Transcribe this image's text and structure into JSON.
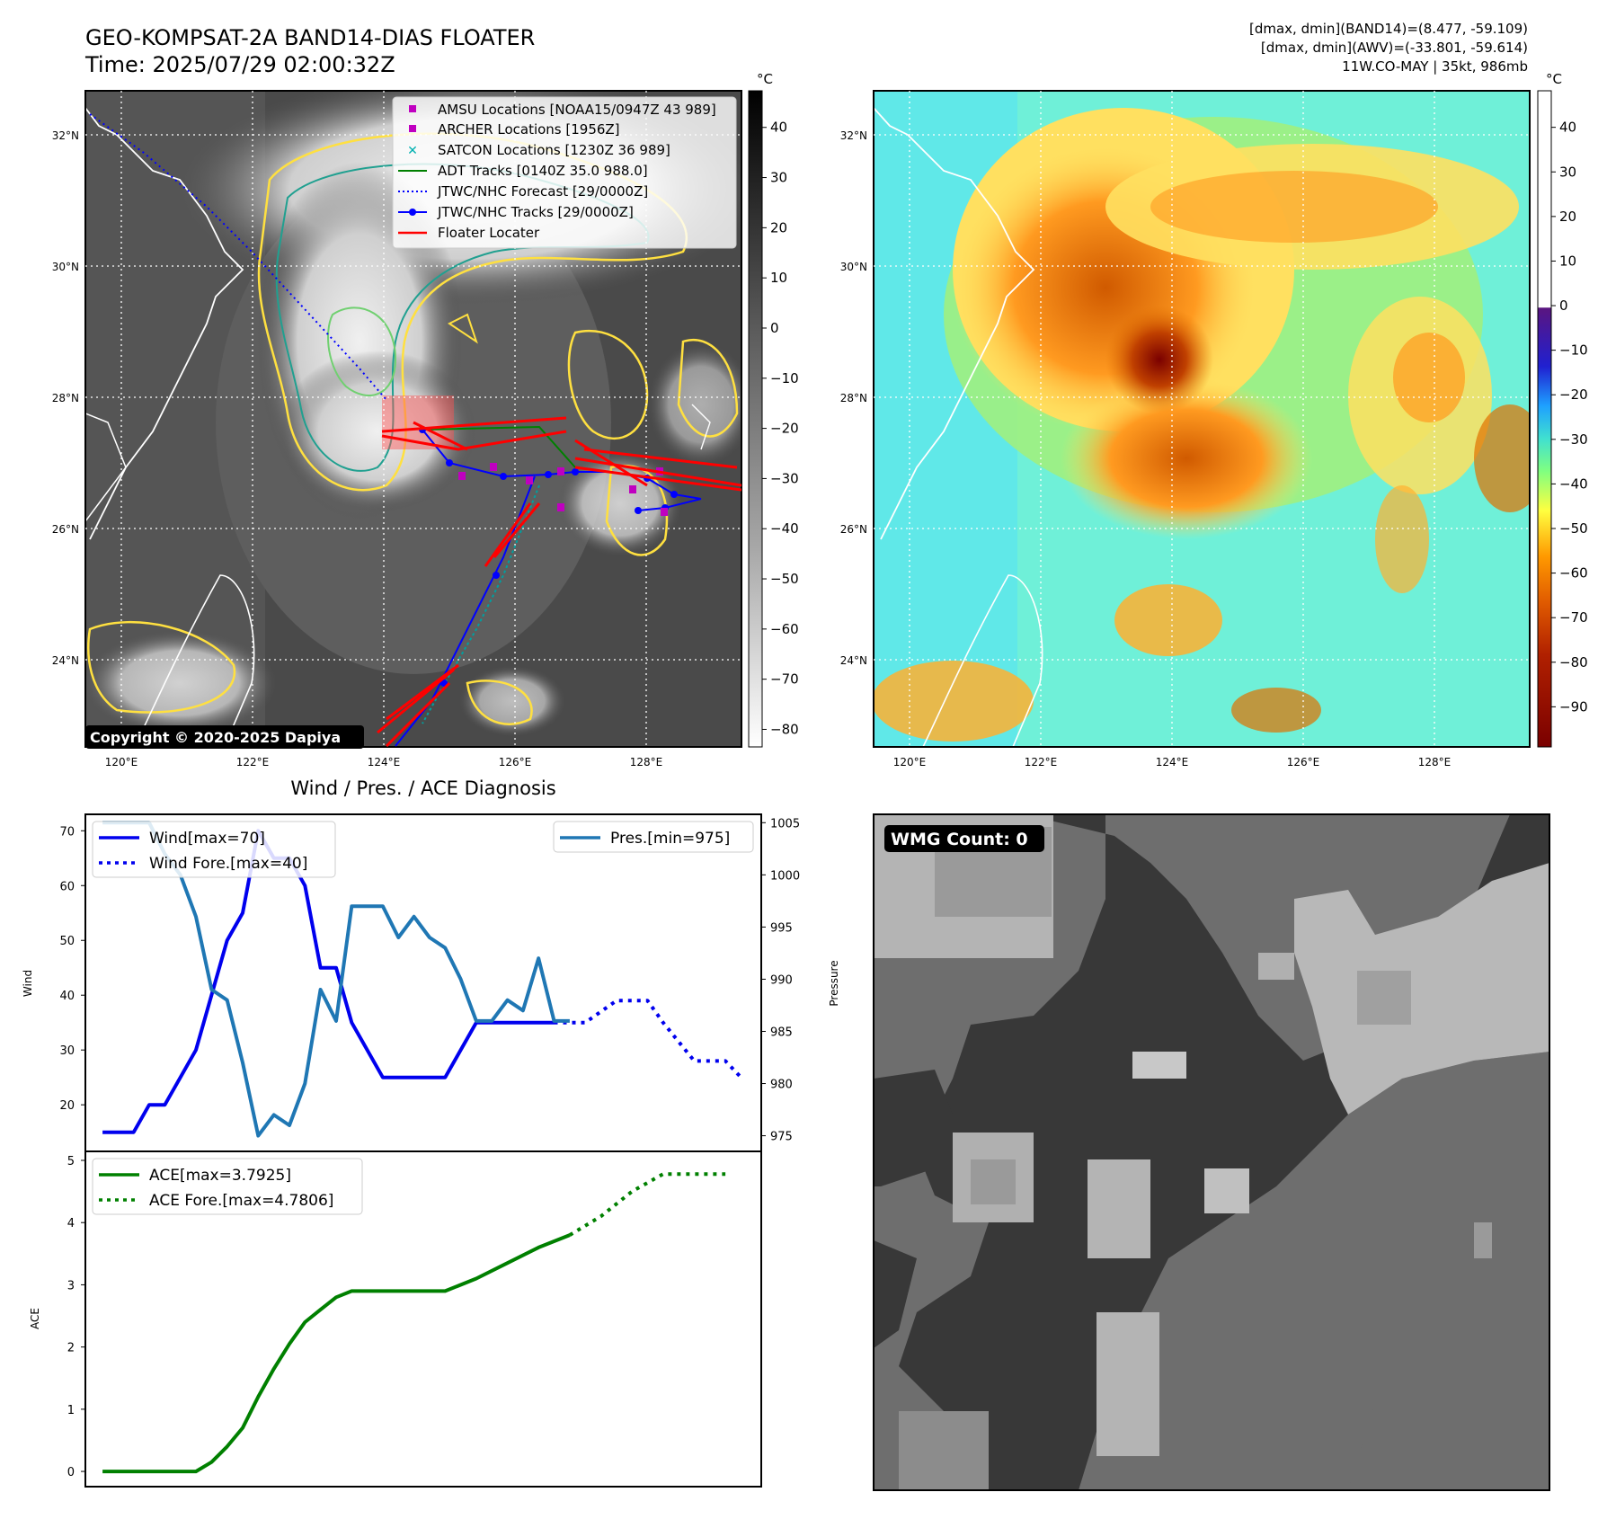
{
  "header": {
    "title": "GEO-KOMPSAT-2A BAND14-DIAS FLOATER",
    "time": "Time: 2025/07/29 02:00:32Z",
    "info_line1": "[dmax, dmin](BAND14)=(8.477, -59.109)",
    "info_line2": "[dmax, dmin](AWV)=(-33.801, -59.614)",
    "info_line3": "11W.CO-MAY | 35kt, 986mb"
  },
  "ir_panel": {
    "copyright": "Copyright © 2020-2025 Dapiya",
    "colorbar_unit": "°C",
    "colorbar_ticks": [
      "40",
      "30",
      "20",
      "10",
      "0",
      "−10",
      "−20",
      "−30",
      "−40",
      "−50",
      "−60",
      "−70",
      "−80"
    ],
    "lat_labels": [
      "32°N",
      "30°N",
      "28°N",
      "26°N",
      "24°N"
    ],
    "lon_labels": [
      "120°E",
      "122°E",
      "124°E",
      "126°E",
      "128°E"
    ],
    "legend": [
      {
        "label": "AMSU Locations [NOAA15/0947Z 43 989]",
        "color": "#c000c0",
        "kind": "square"
      },
      {
        "label": "ARCHER Locations [1956Z]",
        "color": "#c000c0",
        "kind": "square"
      },
      {
        "label": "SATCON Locations [1230Z 36 989]",
        "color": "#00b0b0",
        "kind": "x"
      },
      {
        "label": "ADT Tracks [0140Z 35.0 988.0]",
        "color": "#008000",
        "kind": "line"
      },
      {
        "label": "JTWC/NHC Forecast [29/0000Z]",
        "color": "#0000ff",
        "kind": "dotted"
      },
      {
        "label": "JTWC/NHC Tracks [29/0000Z]",
        "color": "#0000ff",
        "kind": "marker-line"
      },
      {
        "label": "Floater Locater",
        "color": "#ff0000",
        "kind": "line"
      }
    ]
  },
  "awv_panel": {
    "colorbar_unit": "°C",
    "colorbar_ticks": [
      "40",
      "30",
      "20",
      "10",
      "0",
      "−10",
      "−20",
      "−30",
      "−40",
      "−50",
      "−60",
      "−70",
      "−80",
      "−90"
    ],
    "lat_labels": [
      "32°N",
      "30°N",
      "28°N",
      "26°N",
      "24°N"
    ],
    "lon_labels": [
      "120°E",
      "122°E",
      "124°E",
      "126°E",
      "128°E"
    ]
  },
  "wmg_panel": {
    "badge": "WMG Count: 0"
  },
  "diag_title": "Wind / Pres. / ACE Diagnosis",
  "chart_data": [
    {
      "type": "line",
      "ylabel_left": "Wind",
      "ylabel_right": "Pressure",
      "x": [
        0,
        1,
        2,
        3,
        4,
        5,
        6,
        7,
        8,
        9,
        10,
        11,
        12,
        13,
        14,
        15,
        16,
        17,
        18,
        19,
        20,
        21,
        22,
        23,
        24,
        25,
        26,
        27,
        28,
        29
      ],
      "wind_yticks": [
        "70",
        "60",
        "50",
        "40",
        "30",
        "20"
      ],
      "pres_yticks": [
        "1005",
        "1000",
        "995",
        "990",
        "985",
        "980",
        "975"
      ],
      "series": [
        {
          "name": "Wind[max=70]",
          "axis": "left",
          "style": "solid",
          "color": "#0000ee",
          "points": [
            [
              0,
              15
            ],
            [
              2,
              15
            ],
            [
              3,
              20
            ],
            [
              4,
              20
            ],
            [
              6,
              30
            ],
            [
              8,
              50
            ],
            [
              9,
              55
            ],
            [
              10,
              70
            ],
            [
              11,
              65
            ],
            [
              12,
              65
            ],
            [
              13,
              60
            ],
            [
              14,
              45
            ],
            [
              15,
              45
            ],
            [
              16,
              35
            ],
            [
              18,
              25
            ],
            [
              20,
              25
            ],
            [
              22,
              25
            ],
            [
              24,
              35
            ],
            [
              26,
              35
            ],
            [
              28,
              35
            ],
            [
              29,
              35
            ]
          ]
        },
        {
          "name": "Wind Fore.[max=40]",
          "axis": "left",
          "style": "dotted",
          "color": "#0000ee",
          "points": [
            [
              29,
              35
            ],
            [
              31,
              35
            ],
            [
              33,
              39
            ],
            [
              35,
              39
            ],
            [
              36,
              35
            ],
            [
              38,
              28
            ],
            [
              40,
              28
            ],
            [
              41,
              25
            ]
          ]
        },
        {
          "name": "Pres.[min=975]",
          "axis": "right",
          "style": "solid",
          "color": "#1f77b4",
          "points": [
            [
              0,
              1005
            ],
            [
              3,
              1005
            ],
            [
              4,
              1002
            ],
            [
              5,
              1000
            ],
            [
              6,
              996
            ],
            [
              7,
              989
            ],
            [
              8,
              988
            ],
            [
              9,
              982
            ],
            [
              10,
              975
            ],
            [
              11,
              977
            ],
            [
              12,
              976
            ],
            [
              13,
              980
            ],
            [
              14,
              989
            ],
            [
              15,
              986
            ],
            [
              16,
              997
            ],
            [
              17,
              997
            ],
            [
              18,
              997
            ],
            [
              19,
              994
            ],
            [
              20,
              996
            ],
            [
              21,
              994
            ],
            [
              22,
              993
            ],
            [
              23,
              990
            ],
            [
              24,
              986
            ],
            [
              25,
              986
            ],
            [
              26,
              988
            ],
            [
              27,
              987
            ],
            [
              28,
              992
            ],
            [
              29,
              986
            ],
            [
              30,
              986
            ]
          ]
        }
      ]
    },
    {
      "type": "line",
      "ylabel": "ACE",
      "yticks": [
        "5",
        "4",
        "3",
        "2",
        "1",
        "0"
      ],
      "series": [
        {
          "name": "ACE[max=3.7925]",
          "style": "solid",
          "color": "#008000",
          "points": [
            [
              0,
              0
            ],
            [
              6,
              0
            ],
            [
              7,
              0.15
            ],
            [
              8,
              0.4
            ],
            [
              9,
              0.7
            ],
            [
              10,
              1.2
            ],
            [
              11,
              1.65
            ],
            [
              12,
              2.05
            ],
            [
              13,
              2.4
            ],
            [
              14,
              2.6
            ],
            [
              15,
              2.8
            ],
            [
              16,
              2.9
            ],
            [
              18,
              2.9
            ],
            [
              20,
              2.9
            ],
            [
              22,
              2.9
            ],
            [
              24,
              3.1
            ],
            [
              26,
              3.35
            ],
            [
              28,
              3.6
            ],
            [
              30,
              3.8
            ]
          ]
        },
        {
          "name": "ACE Fore.[max=4.7806]",
          "style": "dotted",
          "color": "#008000",
          "points": [
            [
              30,
              3.8
            ],
            [
              32,
              4.1
            ],
            [
              34,
              4.5
            ],
            [
              36,
              4.78
            ],
            [
              38,
              4.78
            ],
            [
              40,
              4.78
            ]
          ]
        }
      ]
    }
  ]
}
